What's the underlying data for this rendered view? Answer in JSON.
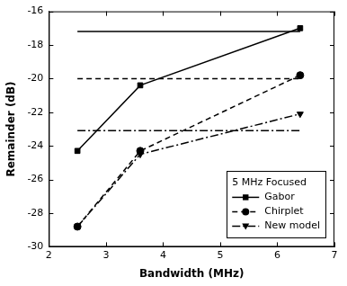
{
  "chart_data": {
    "type": "line",
    "x_label": "Bandwidth (MHz)",
    "y_label": "Remainder (dB)",
    "legend_title": "5 MHz Focused",
    "legend": "lower right",
    "grid": false,
    "xlim": [
      2,
      7
    ],
    "xticks": [
      2,
      3,
      4,
      5,
      6,
      7
    ],
    "ylim": [
      -30,
      -16
    ],
    "yticks": [
      -30,
      -28,
      -26,
      -24,
      -22,
      -20,
      -18,
      -16
    ],
    "series": [
      {
        "name": "Gabor",
        "color": "#000000",
        "line_style": "solid",
        "marker": "square",
        "x": [
          2.5,
          3.6,
          6.4
        ],
        "values": [
          -24.3,
          -20.4,
          -17.0
        ]
      },
      {
        "name": "Chirplet",
        "color": "#000000",
        "line_style": "dashed",
        "marker": "circle",
        "x": [
          2.5,
          3.6,
          6.4
        ],
        "values": [
          -28.8,
          -24.3,
          -19.8
        ]
      },
      {
        "name": "New model",
        "color": "#000000",
        "line_style": "dashdot",
        "marker": "triangle_down",
        "x": [
          2.5,
          3.6,
          6.4
        ],
        "values": [
          -28.8,
          -24.5,
          -22.1
        ]
      },
      {
        "color": "#000000",
        "line_style": "solid",
        "marker": "none",
        "x": [
          2.5,
          6.4
        ],
        "values": [
          -17.2,
          -17.2
        ]
      },
      {
        "color": "#000000",
        "line_style": "dashed",
        "marker": "none",
        "x": [
          2.5,
          6.4
        ],
        "values": [
          -20.0,
          -20.0
        ]
      },
      {
        "color": "#000000",
        "line_style": "dashdot",
        "marker": "none",
        "x": [
          2.5,
          6.4
        ],
        "values": [
          -23.1,
          -23.1
        ]
      }
    ]
  }
}
